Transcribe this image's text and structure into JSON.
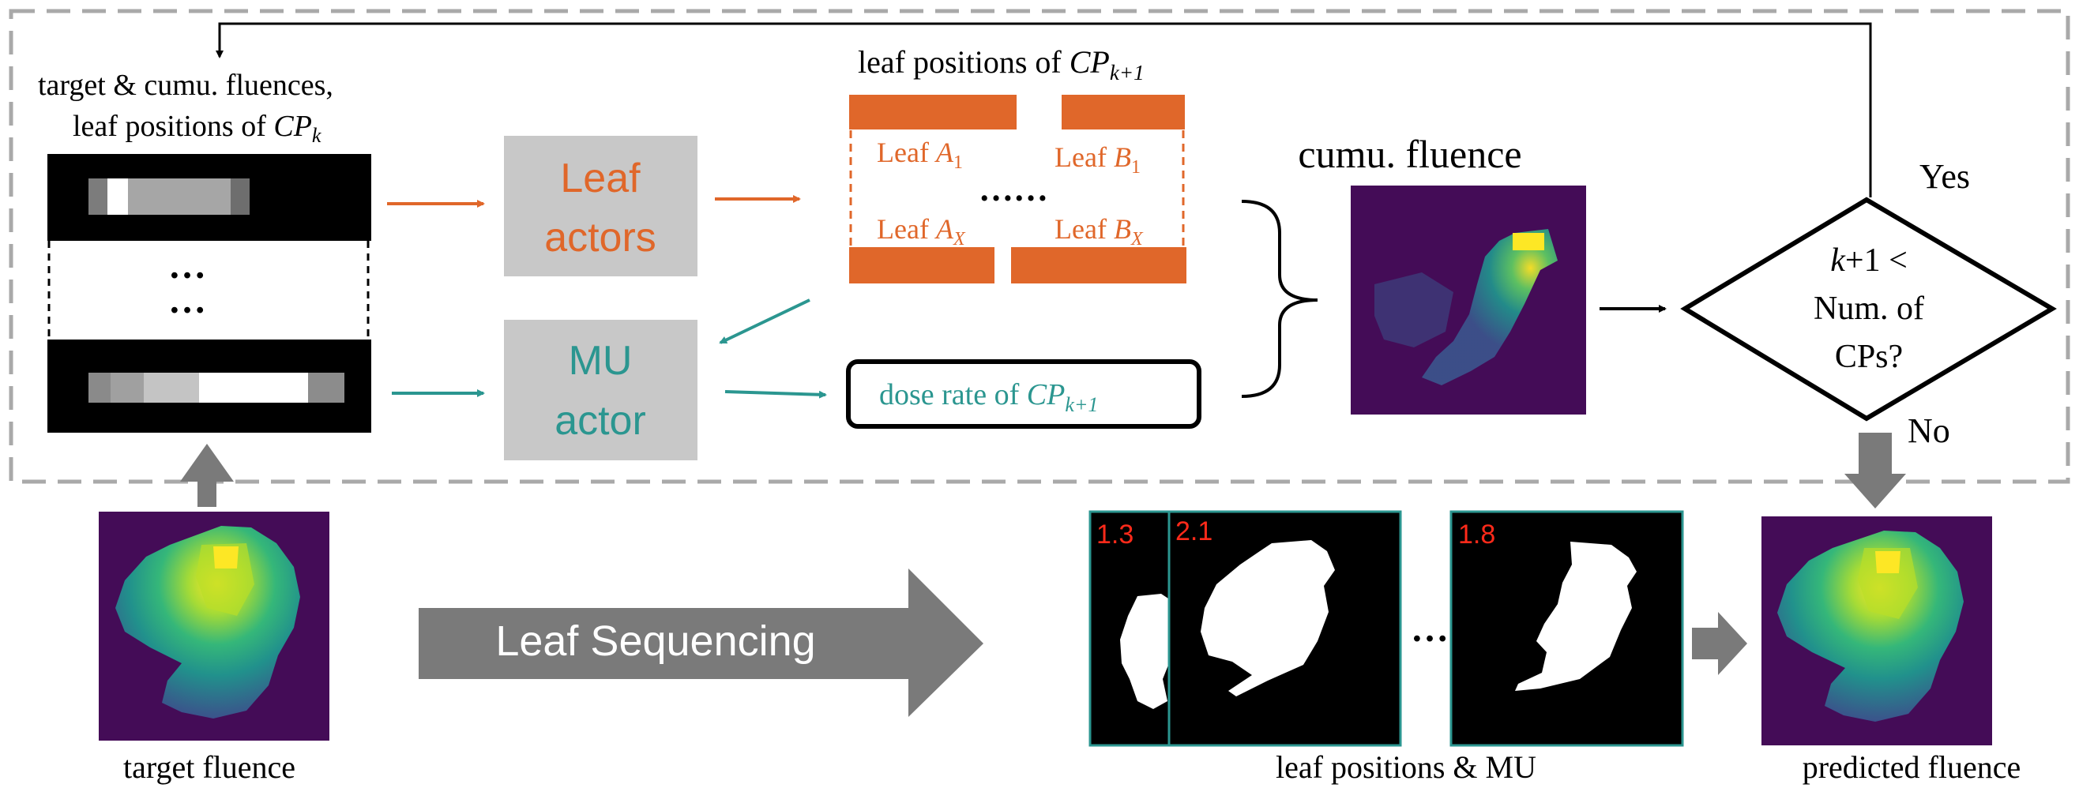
{
  "inputs": {
    "caption_line1": "target & cumu.  fluences,",
    "caption_line2_prefix": "leaf positions of ",
    "cp_var": "CP",
    "k_sub": "k",
    "dots": "…"
  },
  "actors": {
    "leaf_line1": "Leaf",
    "leaf_line2": "actors",
    "mu_line1": "MU",
    "mu_line2": "actor"
  },
  "leaf_positions": {
    "title_prefix": "leaf positions of ",
    "cp_var": "CP",
    "next_sub": "k+1",
    "leaf_a_first_prefix": "Leaf ",
    "a_var": "A",
    "sub_1": "1",
    "leaf_b_first_prefix": "Leaf ",
    "b_var": "B",
    "sub_x": "X",
    "ellipsis": "……"
  },
  "dose_rate": {
    "prefix": "dose rate of ",
    "cp_var": "CP",
    "sub": "k+1"
  },
  "cumu_fluence": {
    "label": "cumu. fluence"
  },
  "decision": {
    "k_var": "k",
    "line1_rest": "+1 <",
    "line2": "Num. of",
    "line3": "CPs?",
    "yes": "Yes",
    "no": "No"
  },
  "bottom": {
    "target_fluence": "target fluence",
    "leaf_sequencing": "Leaf Sequencing",
    "mu_values": [
      "1.3",
      "2.1",
      "1.8"
    ],
    "ellipsis": "…",
    "leaf_positions_mu": "leaf positions & MU",
    "predicted_fluence": "predicted fluence"
  },
  "colors": {
    "orange": "#e0672a",
    "teal": "#2b9690",
    "gray_box": "#c8c8c8",
    "dark_gray": "#7a7a7a",
    "dashed_gray": "#a9a9a9",
    "viridis_bg": "#440c57",
    "mu_red": "#ff2a1a"
  }
}
